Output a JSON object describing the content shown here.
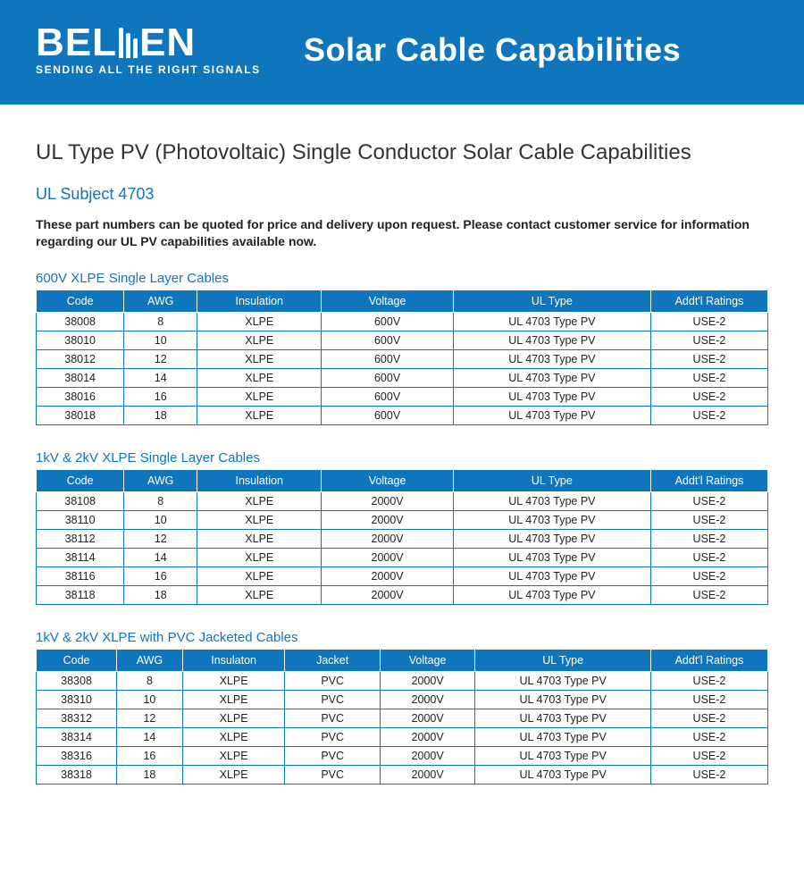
{
  "brand": {
    "name": "BELDEN",
    "tagline": "SENDING ALL THE RIGHT SIGNALS",
    "header_title": "Solar Cable Capabilities",
    "colors": {
      "brand_blue": "#0f75bc",
      "white": "#ffffff",
      "text_dark": "#222222"
    }
  },
  "page": {
    "title": "UL Type PV (Photovoltaic) Single Conductor Solar Cable Capabilities",
    "subject": "UL Subject 4703",
    "intro": "These part numbers can be quoted for price and delivery upon request. Please contact customer service for information regarding our UL PV capabilities available now."
  },
  "tables": [
    {
      "title": "600V XLPE Single Layer Cables",
      "columns": [
        "Code",
        "AWG",
        "Insulation",
        "Voltage",
        "UL Type",
        "Addt'l Ratings"
      ],
      "rows": [
        [
          "38008",
          "8",
          "XLPE",
          "600V",
          "UL 4703 Type PV",
          "USE-2"
        ],
        [
          "38010",
          "10",
          "XLPE",
          "600V",
          "UL 4703 Type PV",
          "USE-2"
        ],
        [
          "38012",
          "12",
          "XLPE",
          "600V",
          "UL 4703 Type PV",
          "USE-2"
        ],
        [
          "38014",
          "14",
          "XLPE",
          "600V",
          "UL 4703 Type PV",
          "USE-2"
        ],
        [
          "38016",
          "16",
          "XLPE",
          "600V",
          "UL 4703 Type PV",
          "USE-2"
        ],
        [
          "38018",
          "18",
          "XLPE",
          "600V",
          "UL 4703 Type PV",
          "USE-2"
        ]
      ]
    },
    {
      "title": "1kV & 2kV XLPE Single Layer Cables",
      "columns": [
        "Code",
        "AWG",
        "Insulation",
        "Voltage",
        "UL Type",
        "Addt'l Ratings"
      ],
      "rows": [
        [
          "38108",
          "8",
          "XLPE",
          "2000V",
          "UL 4703 Type PV",
          "USE-2"
        ],
        [
          "38110",
          "10",
          "XLPE",
          "2000V",
          "UL 4703 Type PV",
          "USE-2"
        ],
        [
          "38112",
          "12",
          "XLPE",
          "2000V",
          "UL 4703 Type PV",
          "USE-2"
        ],
        [
          "38114",
          "14",
          "XLPE",
          "2000V",
          "UL 4703 Type PV",
          "USE-2"
        ],
        [
          "38116",
          "16",
          "XLPE",
          "2000V",
          "UL 4703 Type PV",
          "USE-2"
        ],
        [
          "38118",
          "18",
          "XLPE",
          "2000V",
          "UL 4703 Type PV",
          "USE-2"
        ]
      ]
    },
    {
      "title": "1kV & 2kV XLPE with PVC Jacketed Cables",
      "columns": [
        "Code",
        "AWG",
        "Insulaton",
        "Jacket",
        "Voltage",
        "UL Type",
        "Addt'l Ratings"
      ],
      "rows": [
        [
          "38308",
          "8",
          "XLPE",
          "PVC",
          "2000V",
          "UL 4703 Type PV",
          "USE-2"
        ],
        [
          "38310",
          "10",
          "XLPE",
          "PVC",
          "2000V",
          "UL 4703 Type PV",
          "USE-2"
        ],
        [
          "38312",
          "12",
          "XLPE",
          "PVC",
          "2000V",
          "UL 4703 Type PV",
          "USE-2"
        ],
        [
          "38314",
          "14",
          "XLPE",
          "PVC",
          "2000V",
          "UL 4703 Type PV",
          "USE-2"
        ],
        [
          "38316",
          "16",
          "XLPE",
          "PVC",
          "2000V",
          "UL 4703 Type PV",
          "USE-2"
        ],
        [
          "38318",
          "18",
          "XLPE",
          "PVC",
          "2000V",
          "UL 4703 Type PV",
          "USE-2"
        ]
      ]
    }
  ]
}
